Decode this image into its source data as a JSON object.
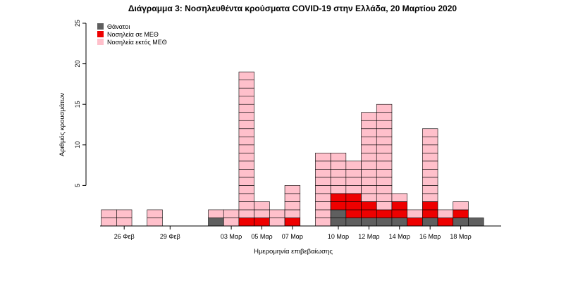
{
  "chart_data": {
    "type": "bar",
    "stacked": true,
    "title": "Διάγραμμα 3: Νοσηλευθέντα κρούσματα COVID-19 στην Ελλάδα, 20 Μαρτίου 2020",
    "xlabel": "Ημερομηνία επιβεβαίωσης",
    "ylabel": "Αριθμός κρουσμάτων",
    "ylim": [
      0,
      25
    ],
    "yticks": [
      5,
      10,
      15,
      20,
      25
    ],
    "xtick_labels": [
      {
        "label": "26 Φεβ",
        "day": 26
      },
      {
        "label": "29 Φεβ",
        "day": 29
      },
      {
        "label": "03 Μαρ",
        "day": 33
      },
      {
        "label": "05 Μαρ",
        "day": 35
      },
      {
        "label": "07 Μαρ",
        "day": 37
      },
      {
        "label": "10 Μαρ",
        "day": 40
      },
      {
        "label": "12 Μαρ",
        "day": 42
      },
      {
        "label": "14 Μαρ",
        "day": 44
      },
      {
        "label": "16 Μαρ",
        "day": 46
      },
      {
        "label": "18 Μαρ",
        "day": 48
      }
    ],
    "categories": [
      "25 Φεβ",
      "26 Φεβ",
      "28 Φεβ",
      "02 Μαρ",
      "03 Μαρ",
      "04 Μαρ",
      "05 Μαρ",
      "06 Μαρ",
      "07 Μαρ",
      "09 Μαρ",
      "10 Μαρ",
      "11 Μαρ",
      "12 Μαρ",
      "13 Μαρ",
      "14 Μαρ",
      "15 Μαρ",
      "16 Μαρ",
      "17 Μαρ",
      "18 Μαρ",
      "19 Μαρ"
    ],
    "category_days": [
      25,
      26,
      28,
      32,
      33,
      34,
      35,
      36,
      37,
      39,
      40,
      41,
      42,
      43,
      44,
      45,
      46,
      47,
      48,
      49
    ],
    "series": [
      {
        "name": "Θάνατοι",
        "color": "#5f5f5f",
        "values": [
          0,
          0,
          0,
          1,
          0,
          0,
          0,
          0,
          0,
          0,
          2,
          1,
          1,
          1,
          1,
          0,
          1,
          0,
          1,
          1
        ]
      },
      {
        "name": "Νοσηλεία σε ΜΕΘ",
        "color": "#ee0000",
        "values": [
          0,
          0,
          0,
          0,
          0,
          1,
          1,
          0,
          1,
          0,
          2,
          3,
          2,
          1,
          2,
          1,
          2,
          1,
          1,
          0
        ]
      },
      {
        "name": "Νοσηλεία εκτός ΜΕΘ",
        "color": "#ffc0cb",
        "values": [
          2,
          2,
          2,
          1,
          2,
          18,
          2,
          2,
          4,
          9,
          5,
          4,
          11,
          13,
          1,
          1,
          9,
          1,
          1,
          0
        ]
      }
    ],
    "legend_position": "top-left",
    "grid": false
  }
}
